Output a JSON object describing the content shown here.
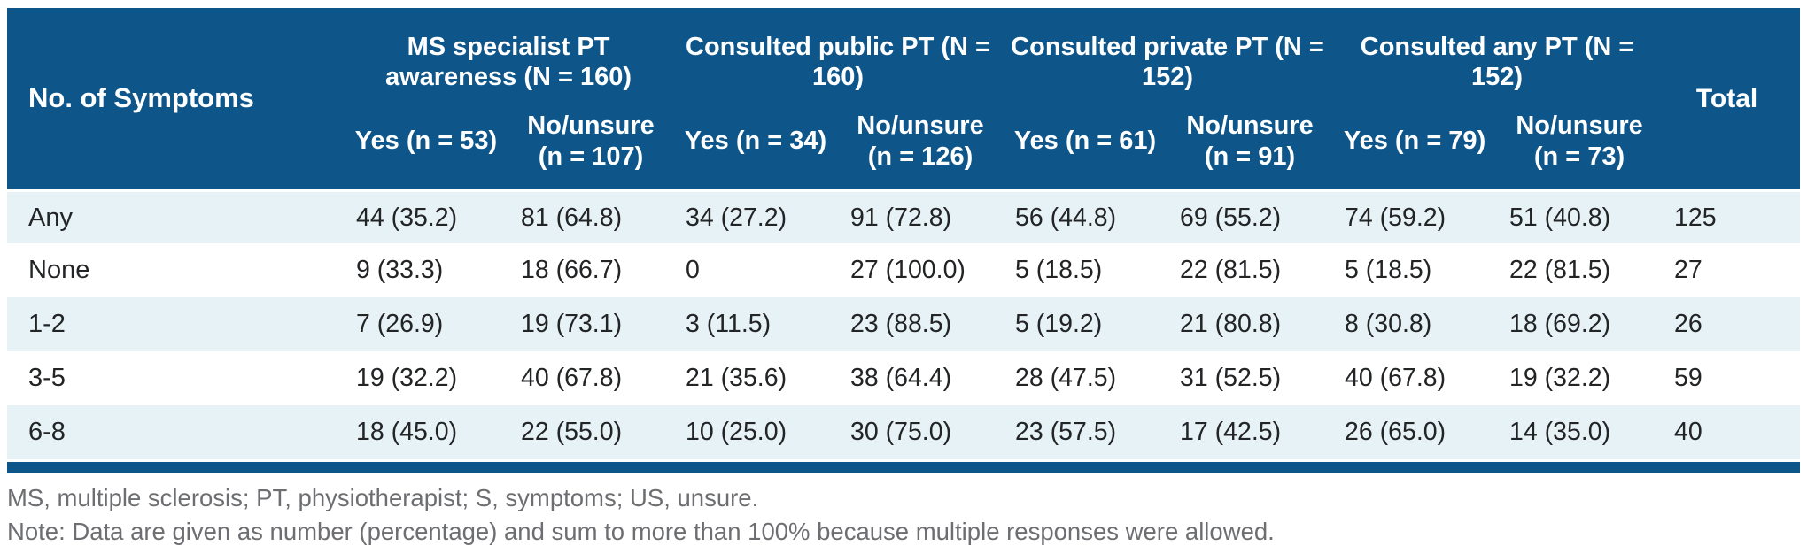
{
  "colors": {
    "header_bg": "#0E568A",
    "row_stripe_bg": "#E7F2F6",
    "header_text": "#FFFFFF",
    "body_text": "#222426",
    "note_text": "#6D6E71"
  },
  "table": {
    "corner_label": "No. of Symptoms",
    "total_label": "Total",
    "groups": [
      {
        "title": "MS specialist PT awareness (N = 160)",
        "yes_label": "Yes (n = 53)",
        "no_label": "No/unsure (n = 107)"
      },
      {
        "title": "Consulted public PT (N = 160)",
        "yes_label": "Yes (n = 34)",
        "no_label": "No/unsure (n = 126)"
      },
      {
        "title": "Consulted private PT (N = 152)",
        "yes_label": "Yes (n = 61)",
        "no_label": "No/unsure (n = 91)"
      },
      {
        "title": "Consulted any PT (N = 152)",
        "yes_label": "Yes (n = 79)",
        "no_label": "No/unsure (n = 73)"
      }
    ],
    "rows": [
      {
        "label": "Any",
        "values": [
          "44 (35.2)",
          "81 (64.8)",
          "34 (27.2)",
          "91 (72.8)",
          "56 (44.8)",
          "69 (55.2)",
          "74 (59.2)",
          "51 (40.8)",
          "125"
        ]
      },
      {
        "label": "None",
        "values": [
          "9 (33.3)",
          "18 (66.7)",
          "0",
          "27 (100.0)",
          "5 (18.5)",
          "22 (81.5)",
          "5 (18.5)",
          "22 (81.5)",
          "27"
        ]
      },
      {
        "label": "1-2",
        "values": [
          "7 (26.9)",
          "19 (73.1)",
          "3 (11.5)",
          "23 (88.5)",
          "5 (19.2)",
          "21 (80.8)",
          "8 (30.8)",
          "18 (69.2)",
          "26"
        ]
      },
      {
        "label": "3-5",
        "values": [
          "19 (32.2)",
          "40 (67.8)",
          "21 (35.6)",
          "38 (64.4)",
          "28 (47.5)",
          "31 (52.5)",
          "40 (67.8)",
          "19 (32.2)",
          "59"
        ]
      },
      {
        "label": "6-8",
        "values": [
          "18 (45.0)",
          "22 (55.0)",
          "10 (25.0)",
          "30 (75.0)",
          "23 (57.5)",
          "17 (42.5)",
          "26 (65.0)",
          "14 (35.0)",
          "40"
        ]
      }
    ]
  },
  "footnotes": {
    "abbreviations": "MS, multiple sclerosis; PT, physiotherapist; S, symptoms; US, unsure.",
    "note": "Note: Data are given as number (percentage) and sum to more than 100% because multiple responses were allowed."
  }
}
